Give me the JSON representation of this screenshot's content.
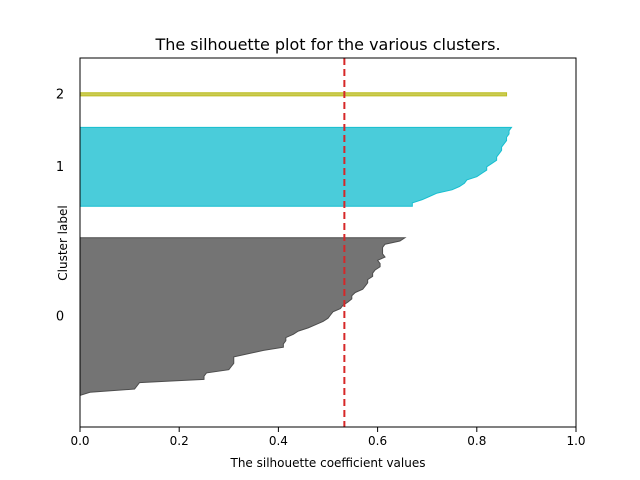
{
  "chart_data": {
    "type": "area",
    "title": "The silhouette plot for the various clusters.",
    "xlabel": "The silhouette coefficient values",
    "ylabel": "Cluster label",
    "xlim": [
      0.0,
      1.0
    ],
    "xticks": [
      "0.0",
      "0.2",
      "0.4",
      "0.6",
      "0.8",
      "1.0"
    ],
    "grid": false,
    "average_silhouette_score": 0.533,
    "average_line_color": "#d62728",
    "series": [
      {
        "label": "0",
        "color": "#4d4d4d",
        "members_sorted_desc": [
          0.655,
          0.645,
          0.615,
          0.61,
          0.61,
          0.61,
          0.615,
          0.6,
          0.605,
          0.605,
          0.595,
          0.59,
          0.59,
          0.58,
          0.58,
          0.575,
          0.57,
          0.555,
          0.548,
          0.548,
          0.54,
          0.53,
          0.525,
          0.51,
          0.505,
          0.5,
          0.49,
          0.475,
          0.46,
          0.44,
          0.43,
          0.415,
          0.415,
          0.41,
          0.41,
          0.37,
          0.34,
          0.31,
          0.31,
          0.31,
          0.305,
          0.3,
          0.255,
          0.25,
          0.25,
          0.12,
          0.115,
          0.11,
          0.02,
          0.0
        ]
      },
      {
        "label": "1",
        "color": "#17becf",
        "members_sorted_desc": [
          0.87,
          0.865,
          0.865,
          0.86,
          0.86,
          0.855,
          0.85,
          0.85,
          0.845,
          0.84,
          0.84,
          0.83,
          0.82,
          0.82,
          0.81,
          0.8,
          0.78,
          0.775,
          0.765,
          0.75,
          0.72,
          0.705,
          0.69,
          0.67,
          0.67
        ]
      },
      {
        "label": "2",
        "color": "#bcbd22",
        "members_sorted_desc": [
          0.86
        ]
      }
    ]
  }
}
